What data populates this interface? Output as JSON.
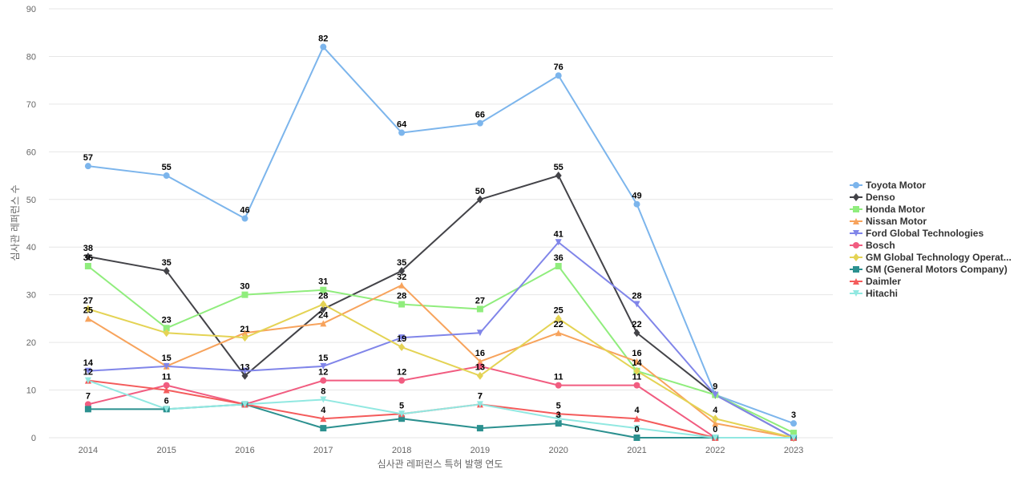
{
  "chart_data": {
    "type": "line",
    "xlabel": "심사관 레퍼런스 특허 발행 연도",
    "ylabel": "심사관 레퍼런스 수",
    "ylim": [
      0,
      90
    ],
    "yticks": [
      0,
      10,
      20,
      30,
      40,
      50,
      60,
      70,
      80,
      90
    ],
    "grid": true,
    "legend_position": "right",
    "categories": [
      "2014",
      "2015",
      "2016",
      "2017",
      "2018",
      "2019",
      "2020",
      "2021",
      "2022",
      "2023"
    ],
    "series": [
      {
        "name": "Toyota Motor",
        "color": "#7cb5ec",
        "marker": "circle",
        "values": [
          57,
          55,
          46,
          82,
          64,
          66,
          76,
          49,
          9,
          3
        ]
      },
      {
        "name": "Denso",
        "color": "#434348",
        "marker": "diamond",
        "values": [
          38,
          35,
          13,
          27,
          35,
          50,
          55,
          22,
          9,
          0
        ]
      },
      {
        "name": "Honda Motor",
        "color": "#90ed7d",
        "marker": "square",
        "values": [
          36,
          23,
          30,
          31,
          28,
          27,
          36,
          14,
          9,
          1
        ]
      },
      {
        "name": "Nissan Motor",
        "color": "#f7a35c",
        "marker": "triangle",
        "values": [
          25,
          15,
          22,
          24,
          32,
          16,
          22,
          16,
          3,
          0
        ]
      },
      {
        "name": "Ford Global Technologies",
        "color": "#8085e9",
        "marker": "triangle-down",
        "values": [
          14,
          15,
          14,
          15,
          21,
          22,
          41,
          28,
          9,
          0
        ]
      },
      {
        "name": "Bosch",
        "color": "#f15c80",
        "marker": "circle",
        "values": [
          7,
          11,
          7,
          12,
          12,
          15,
          11,
          11,
          0,
          0
        ]
      },
      {
        "name": "GM Global Technology Operat...",
        "color": "#e4d354",
        "marker": "diamond",
        "values": [
          27,
          22,
          21,
          28,
          19,
          13,
          25,
          14,
          4,
          0
        ]
      },
      {
        "name": "GM (General Motors Company)",
        "color": "#2b908f",
        "marker": "square",
        "values": [
          6,
          6,
          7,
          2,
          4,
          2,
          3,
          0,
          0,
          0
        ]
      },
      {
        "name": "Daimler",
        "color": "#f45b5b",
        "marker": "triangle",
        "values": [
          12,
          10,
          7,
          4,
          5,
          7,
          5,
          4,
          0,
          0
        ]
      },
      {
        "name": "Hitachi",
        "color": "#91e8e1",
        "marker": "triangle-down",
        "values": [
          12,
          6,
          7,
          8,
          5,
          7,
          4,
          2,
          0,
          0
        ]
      }
    ],
    "data_labels": [
      {
        "series": 0,
        "points": [
          0,
          1,
          2,
          3,
          4,
          5,
          6,
          7,
          8,
          9
        ]
      },
      {
        "series": 1,
        "points": [
          0,
          1,
          2,
          4,
          5,
          6,
          7
        ]
      },
      {
        "series": 2,
        "points": [
          0,
          1,
          2,
          3,
          4,
          5,
          6,
          7
        ]
      },
      {
        "series": 3,
        "points": [
          0,
          3,
          4,
          5,
          6,
          7
        ]
      },
      {
        "series": 4,
        "points": [
          0,
          1,
          3,
          6,
          7
        ]
      },
      {
        "series": 5,
        "points": [
          0,
          1,
          3,
          4,
          6,
          7,
          8
        ]
      },
      {
        "series": 6,
        "points": [
          0,
          2,
          3,
          4,
          5,
          6,
          8
        ]
      },
      {
        "series": 7,
        "points": [
          6,
          7
        ]
      },
      {
        "series": 8,
        "points": [
          3,
          4,
          5,
          6,
          7
        ]
      },
      {
        "series": 9,
        "points": [
          0,
          1,
          3,
          5
        ]
      }
    ]
  }
}
